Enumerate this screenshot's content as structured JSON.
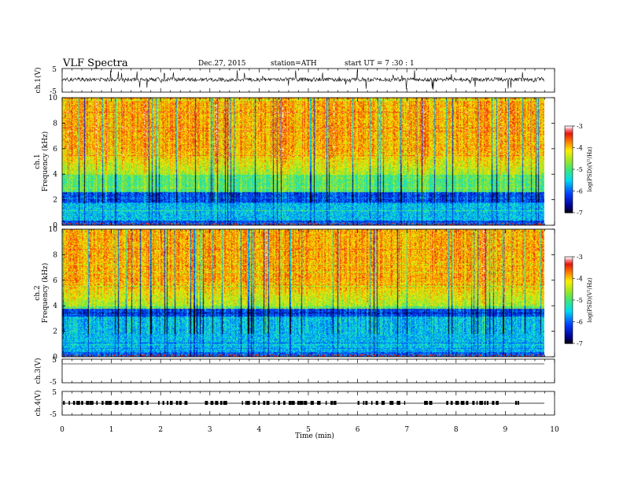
{
  "header": {
    "title": "VLF  Spectra",
    "date": "Dec.27, 2015",
    "station": "station=ATH",
    "start": "start  UT  =   7  :30 : 1"
  },
  "chart_data": [
    {
      "type": "line",
      "name": "ch1-waveform",
      "ylabel": "ch.1(V)",
      "ylim": [
        -5,
        5
      ],
      "yticks": [
        "5",
        "-5"
      ],
      "xlim": [
        0,
        10
      ],
      "grid": false
    },
    {
      "type": "heatmap",
      "name": "ch1-spectrogram",
      "ylabel": "ch.1",
      "ylabel2": "Frequency  (kHz)",
      "ylim": [
        0,
        10
      ],
      "yticks": [
        "0",
        "2",
        "4",
        "6",
        "8",
        "10"
      ],
      "xlim": [
        0,
        10
      ],
      "colorbar": {
        "label": "log(PSD)(V²/Hz)",
        "range": [
          -7,
          -3
        ],
        "ticks": [
          "-3",
          "-4",
          "-5",
          "-6",
          "-7"
        ]
      }
    },
    {
      "type": "heatmap",
      "name": "ch2-spectrogram",
      "ylabel": "ch.2",
      "ylabel2": "Frequency  (kHz)",
      "ylim": [
        0,
        10
      ],
      "yticks": [
        "0",
        "2",
        "4",
        "6",
        "8",
        "10"
      ],
      "xlim": [
        0,
        10
      ],
      "colorbar": {
        "label": "log(PSD)(V²/Hz)",
        "range": [
          -7,
          -3
        ],
        "ticks": [
          "-3",
          "-4",
          "-5",
          "-6",
          "-7"
        ]
      }
    },
    {
      "type": "line",
      "name": "ch3-waveform",
      "ylabel": "ch.3(V)",
      "ylim": [
        -5,
        5
      ],
      "yticks": [
        "5",
        "-5"
      ],
      "xlim": [
        0,
        10
      ]
    },
    {
      "type": "line",
      "name": "ch4-waveform",
      "ylabel": "ch.4(V)",
      "ylim": [
        -5,
        5
      ],
      "yticks": [
        "5",
        "-5"
      ],
      "xlim": [
        0,
        10
      ],
      "xlabel": "Time  (min)",
      "xticks": [
        "0",
        "1",
        "2",
        "3",
        "4",
        "5",
        "6",
        "7",
        "8",
        "9",
        "10"
      ]
    }
  ]
}
